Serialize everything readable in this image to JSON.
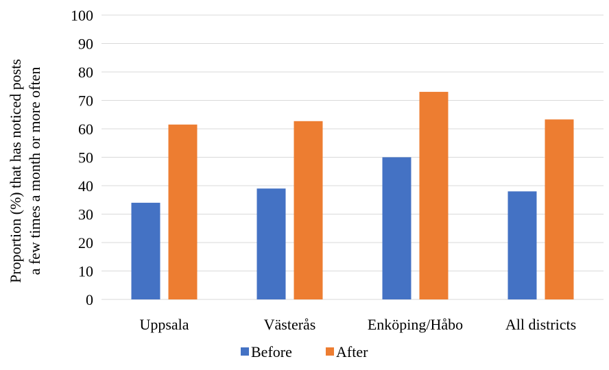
{
  "chart_data": {
    "type": "bar",
    "title": "",
    "xlabel": "",
    "ylabel_lines": [
      "Proportion (%) that has noticed posts",
      "a few times a month or more often"
    ],
    "ylim": [
      0,
      100
    ],
    "yticks": [
      0,
      10,
      20,
      30,
      40,
      50,
      60,
      70,
      80,
      90,
      100
    ],
    "grid": true,
    "legend_position": "bottom",
    "categories": [
      "Uppsala",
      "Västerås",
      "Enköping/Håbo",
      "All districts"
    ],
    "series": [
      {
        "name": "Before",
        "color": "#4472c4",
        "values": [
          34,
          39,
          50,
          38
        ]
      },
      {
        "name": "After",
        "color": "#ed7d31",
        "values": [
          61.5,
          62.7,
          73,
          63.3
        ]
      }
    ]
  }
}
